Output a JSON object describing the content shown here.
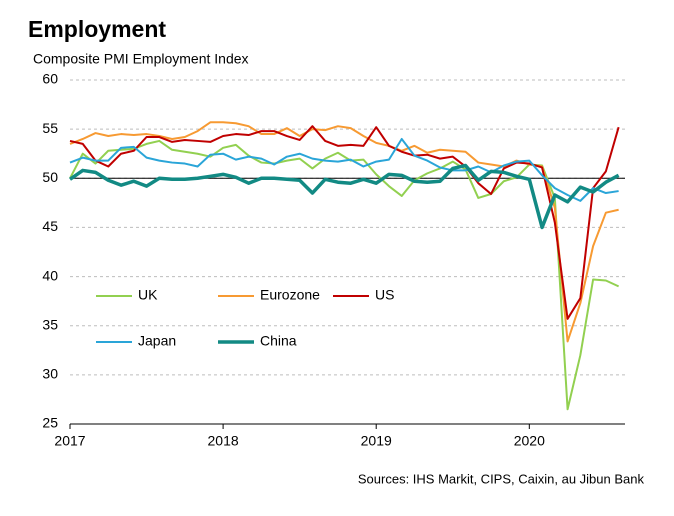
{
  "chart_data": {
    "type": "line",
    "title": "Employment",
    "subtitle": "Composite PMI Employment Index",
    "source": "Sources: IHS Markit, CIPS, Caixin, au Jibun Bank",
    "x": [
      0,
      1,
      2,
      3,
      4,
      5,
      6,
      7,
      8,
      9,
      10,
      11,
      12,
      13,
      14,
      15,
      16,
      17,
      18,
      19,
      20,
      21,
      22,
      23,
      24,
      25,
      26,
      27,
      28,
      29,
      30,
      31,
      32,
      33,
      34,
      35,
      36,
      37,
      38,
      39,
      40,
      41,
      42,
      43
    ],
    "xlim": [
      0,
      43.5
    ],
    "xticks": [
      {
        "value": 0,
        "label": "2017"
      },
      {
        "value": 12,
        "label": "2018"
      },
      {
        "value": 24,
        "label": "2019"
      },
      {
        "value": 36,
        "label": "2020"
      }
    ],
    "ylim": [
      25,
      60
    ],
    "yticks": [
      25,
      30,
      35,
      40,
      45,
      50,
      55,
      60
    ],
    "grid": true,
    "reference_line": 50,
    "series": [
      {
        "name": "UK",
        "color": "#92d050",
        "values": [
          50.0,
          52.5,
          51.5,
          52.8,
          52.9,
          53.0,
          53.5,
          53.8,
          52.9,
          52.7,
          52.5,
          52.2,
          53.1,
          53.4,
          52.3,
          51.6,
          51.5,
          51.8,
          52.0,
          51.0,
          52.0,
          52.6,
          51.8,
          51.9,
          50.4,
          49.2,
          48.2,
          49.8,
          50.5,
          51.0,
          51.7,
          50.9,
          48.0,
          48.4,
          49.7,
          50.1,
          51.4,
          51.3,
          48.0,
          26.5,
          32.0,
          39.7,
          39.6,
          39.0
        ]
      },
      {
        "name": "Eurozone",
        "color": "#f79a32",
        "values": [
          53.5,
          54.0,
          54.6,
          54.3,
          54.5,
          54.4,
          54.5,
          54.3,
          54.0,
          54.2,
          54.8,
          55.7,
          55.7,
          55.6,
          55.3,
          54.5,
          54.5,
          55.1,
          54.3,
          55.0,
          54.9,
          55.3,
          55.1,
          54.3,
          53.6,
          53.3,
          52.8,
          53.3,
          52.6,
          52.9,
          52.8,
          52.7,
          51.6,
          51.4,
          51.2,
          51.8,
          51.4,
          51.2,
          47.0,
          33.4,
          37.3,
          43.1,
          46.5,
          46.8
        ]
      },
      {
        "name": "US",
        "color": "#c00000",
        "values": [
          53.8,
          53.5,
          51.8,
          51.2,
          52.5,
          52.8,
          54.2,
          54.2,
          53.7,
          53.9,
          53.8,
          53.7,
          54.3,
          54.5,
          54.4,
          54.8,
          54.8,
          54.3,
          53.9,
          55.3,
          53.8,
          53.3,
          53.4,
          53.3,
          55.2,
          53.3,
          52.7,
          52.3,
          52.4,
          52.0,
          52.2,
          51.2,
          49.5,
          48.4,
          51.0,
          51.6,
          51.5,
          51.1,
          45.5,
          35.7,
          37.8,
          49.0,
          50.7,
          55.2
        ]
      },
      {
        "name": "Japan",
        "color": "#2aa5d8",
        "values": [
          51.6,
          52.1,
          51.8,
          51.8,
          53.1,
          53.2,
          52.1,
          51.8,
          51.6,
          51.5,
          51.2,
          52.4,
          52.5,
          51.9,
          52.2,
          52.0,
          51.4,
          52.2,
          52.5,
          52.0,
          51.8,
          51.7,
          51.9,
          51.2,
          51.7,
          51.9,
          54.0,
          52.3,
          51.8,
          51.1,
          50.8,
          50.8,
          51.2,
          50.6,
          51.3,
          51.7,
          51.8,
          50.3,
          49.0,
          48.3,
          47.7,
          49.0,
          48.5,
          48.7
        ]
      },
      {
        "name": "China",
        "color": "#128a84",
        "values": [
          49.9,
          50.8,
          50.6,
          49.8,
          49.3,
          49.7,
          49.2,
          50.0,
          49.9,
          49.9,
          50.0,
          50.2,
          50.4,
          50.1,
          49.5,
          50.0,
          50.0,
          49.9,
          49.8,
          48.5,
          49.9,
          49.6,
          49.5,
          49.9,
          49.5,
          50.4,
          50.3,
          49.7,
          49.6,
          49.7,
          51.0,
          51.3,
          49.8,
          50.7,
          50.6,
          50.2,
          49.9,
          45.0,
          48.3,
          47.6,
          49.1,
          48.6,
          49.6,
          50.3
        ]
      }
    ]
  }
}
